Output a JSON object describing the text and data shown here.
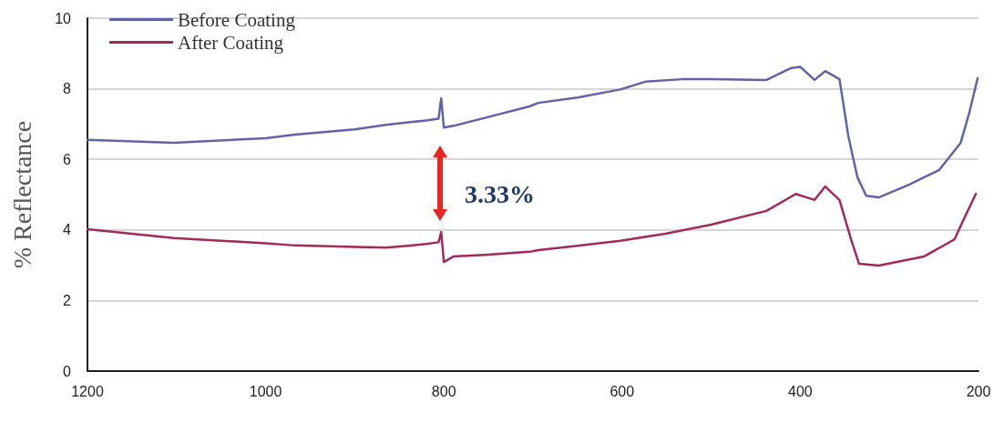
{
  "chart_data": {
    "type": "line",
    "ylabel": "% Reflectance",
    "xlim": [
      1200,
      200
    ],
    "xticks": [
      1200,
      1000,
      800,
      600,
      400,
      200
    ],
    "ylim": [
      0,
      10
    ],
    "yticks": [
      0,
      2,
      4,
      6,
      8,
      10
    ],
    "grid": "y",
    "legend": "top left",
    "annotations": [
      "3.33%"
    ],
    "series": [
      {
        "name": "Before Coating",
        "color": "#6262aa",
        "x": [
          1200,
          1103,
          1000,
          967,
          900,
          865,
          840,
          820,
          806,
          803,
          800,
          789,
          750,
          704,
          694,
          650,
          602,
          574,
          533,
          500,
          438,
          411,
          400,
          384,
          372,
          356,
          346,
          336,
          326,
          312,
          278,
          244,
          220,
          210,
          201
        ],
        "values": [
          6.55,
          6.47,
          6.6,
          6.7,
          6.85,
          6.98,
          7.05,
          7.1,
          7.15,
          7.73,
          6.9,
          6.95,
          7.2,
          7.5,
          7.6,
          7.75,
          7.98,
          8.2,
          8.27,
          8.27,
          8.25,
          8.58,
          8.62,
          8.25,
          8.5,
          8.27,
          6.65,
          5.5,
          4.97,
          4.92,
          5.28,
          5.7,
          6.47,
          7.35,
          8.3
        ]
      },
      {
        "name": "After Coating",
        "color": "#a3285e",
        "x": [
          1200,
          1103,
          1000,
          967,
          900,
          865,
          840,
          820,
          806,
          803,
          800,
          789,
          750,
          704,
          694,
          650,
          602,
          550,
          500,
          438,
          405,
          384,
          372,
          356,
          343,
          334,
          312,
          261,
          227,
          216,
          203
        ],
        "values": [
          4.02,
          3.77,
          3.62,
          3.56,
          3.52,
          3.5,
          3.55,
          3.6,
          3.65,
          3.94,
          3.09,
          3.25,
          3.3,
          3.38,
          3.43,
          3.55,
          3.69,
          3.9,
          4.15,
          4.54,
          5.02,
          4.85,
          5.23,
          4.85,
          3.73,
          3.04,
          2.99,
          3.25,
          3.73,
          4.33,
          5.02
        ]
      }
    ]
  }
}
